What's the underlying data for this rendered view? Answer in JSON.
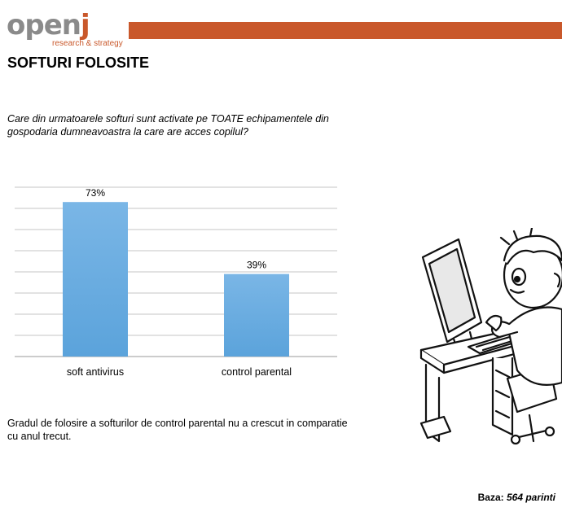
{
  "brand": {
    "logo_main": "open",
    "logo_accent": "j",
    "logo_sub": "research & strategy"
  },
  "page": {
    "title": "SOFTURI FOLOSITE",
    "question": "Care din urmatoarele softuri sunt activate pe TOATE echipamentele din gospodaria dumneavoastra la care are acces copilul?",
    "note": "Gradul de folosire a softurilor de control parental nu a crescut in comparatie cu anul trecut.",
    "base_label": "Baza:",
    "base_value": "564 parinti"
  },
  "chart_data": {
    "type": "bar",
    "categories": [
      "soft antivirus",
      "control parental"
    ],
    "values": [
      73,
      39
    ],
    "value_labels": [
      "73%",
      "39%"
    ],
    "ylim": [
      0,
      80
    ],
    "grid": true,
    "bar_color": "#5ba3db"
  },
  "colors": {
    "accent": "#c9582b",
    "logo_gray": "#8a8a8a"
  },
  "illustration": {
    "icon": "child-at-computer-icon"
  }
}
